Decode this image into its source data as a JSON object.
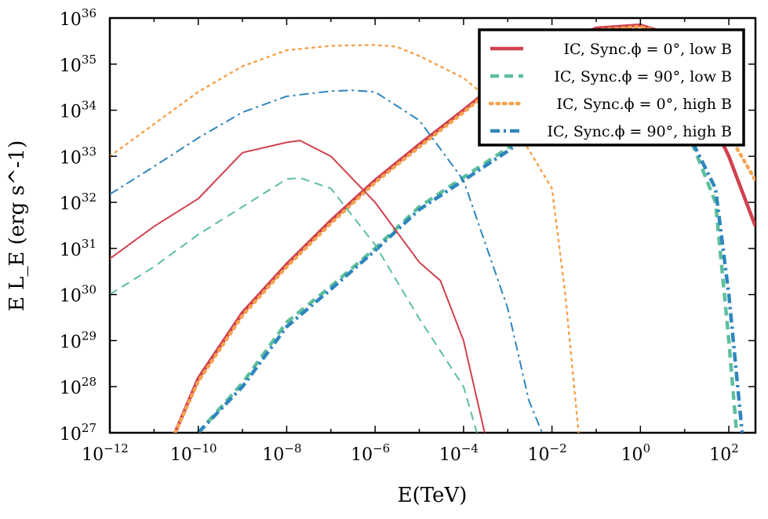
{
  "chart_data": {
    "type": "line",
    "x_scale": "log",
    "y_scale": "log",
    "xlim": [
      1e-12,
      400
    ],
    "ylim": [
      1e+27,
      1e+36
    ],
    "xlabel": "E(TeV)",
    "ylabel": "E L_E (erg s^-1)",
    "x_tick_exponents": [
      -12,
      -10,
      -8,
      -6,
      -4,
      -2,
      0,
      2
    ],
    "y_tick_exponents": [
      27,
      28,
      29,
      30,
      31,
      32,
      33,
      34,
      35,
      36
    ],
    "tick_base": "10",
    "legend_position": "top-right",
    "grid": false,
    "legend": [
      {
        "label": "IC, Sync.ϕ = 0°, low B",
        "color": "#d1404e",
        "style": "solid"
      },
      {
        "label": "IC, Sync.ϕ = 90°, low B",
        "color": "#5dbf9b",
        "style": "dashed"
      },
      {
        "label": "IC, Sync.ϕ = 0°, high B",
        "color": "#f5a34f",
        "style": "dotted"
      },
      {
        "label": "IC, Sync.ϕ = 90°, high B",
        "color": "#2f86bd",
        "style": "dashdot"
      }
    ],
    "series": [
      {
        "name": "IC, Sync.ϕ = 0°, low B",
        "component": "IC",
        "color": "#d1404e",
        "style": "solid",
        "width": 4.5,
        "x": [
          3e-11,
          1e-10,
          1e-09,
          1e-08,
          1e-07,
          1e-06,
          1e-05,
          0.0001,
          0.001,
          0.01,
          0.1,
          1,
          3,
          10,
          100,
          400
        ],
        "y": [
          1e+27,
          1.5e+28,
          4e+29,
          4.5e+30,
          4e+31,
          3e+32,
          1.8e+33,
          1e+34,
          6e+34,
          2.5e+35,
          6e+35,
          7e+35,
          5e+35,
          1e+35,
          1e+33,
          3e+31
        ]
      },
      {
        "name": "IC, Sync.ϕ = 90°, low B",
        "component": "IC",
        "color": "#5dbf9b",
        "style": "dashed",
        "width": 4.5,
        "x": [
          1e-10,
          1e-09,
          1e-08,
          1e-07,
          1e-06,
          1e-05,
          0.0001,
          0.001,
          0.01,
          0.1,
          0.5,
          1,
          10,
          50,
          100,
          150
        ],
        "y": [
          1e+27,
          1.2e+28,
          2.5e+29,
          1.5e+30,
          1e+31,
          8e+31,
          3.5e+32,
          1.5e+33,
          8e+33,
          2.5e+34,
          3e+34,
          2.8e+34,
          5e+33,
          1e+32,
          1e+29,
          1e+27
        ]
      },
      {
        "name": "IC, Sync.ϕ = 0°, high B",
        "component": "IC",
        "color": "#f5a34f",
        "style": "dotted",
        "width": 4.5,
        "x": [
          3e-11,
          1e-10,
          1e-09,
          1e-08,
          1e-07,
          1e-06,
          1e-05,
          0.0001,
          0.001,
          0.01,
          0.1,
          1,
          3,
          10,
          100,
          400
        ],
        "y": [
          1e+27,
          1.3e+28,
          3.5e+29,
          4e+30,
          3.5e+31,
          2.7e+32,
          1.6e+33,
          9e+33,
          5.5e+34,
          2.3e+35,
          5.5e+35,
          6.5e+35,
          5e+35,
          1.5e+35,
          3e+33,
          3e+32
        ]
      },
      {
        "name": "IC, Sync.ϕ = 90°, high B",
        "component": "IC",
        "color": "#2f86bd",
        "style": "dashdot",
        "width": 4.5,
        "x": [
          1e-10,
          1e-09,
          1e-08,
          1e-07,
          1e-06,
          1e-05,
          0.0001,
          0.001,
          0.01,
          0.1,
          0.5,
          1,
          10,
          50,
          100,
          200
        ],
        "y": [
          1e+27,
          1e+28,
          2e+29,
          1.3e+30,
          9e+30,
          7e+31,
          3e+32,
          1.3e+33,
          7e+33,
          2.3e+34,
          2.8e+34,
          2.6e+34,
          4.5e+33,
          2e+32,
          1e+30,
          1e+27
        ]
      },
      {
        "name": "IC, Sync.ϕ = 0°, low B",
        "component": "Sync",
        "color": "#d1404e",
        "style": "solid",
        "width": 2,
        "x": [
          1e-12,
          1e-11,
          1e-10,
          1e-09,
          1e-08,
          2e-08,
          1e-07,
          1e-06,
          1e-05,
          3e-05,
          0.0001,
          0.0003
        ],
        "y": [
          6e+30,
          3e+31,
          1.2e+32,
          1.2e+33,
          2e+33,
          2.2e+33,
          1e+33,
          1e+32,
          5e+30,
          2e+30,
          1e+29,
          1e+27
        ]
      },
      {
        "name": "IC, Sync.ϕ = 90°, low B",
        "component": "Sync",
        "color": "#5dbf9b",
        "style": "dashed",
        "width": 2,
        "x": [
          1e-12,
          1e-11,
          1e-10,
          1e-09,
          1e-08,
          2e-08,
          1e-07,
          1e-06,
          1e-05,
          0.0001,
          0.0002
        ],
        "y": [
          1e+30,
          4e+30,
          2e+31,
          8e+31,
          3.2e+32,
          3.4e+32,
          2e+32,
          1.2e+31,
          3e+29,
          1e+28,
          1e+27
        ]
      },
      {
        "name": "IC, Sync.ϕ = 0°, high B",
        "component": "Sync",
        "color": "#f5a34f",
        "style": "dotted",
        "width": 2.5,
        "x": [
          1e-12,
          1e-11,
          1e-10,
          1e-09,
          1e-08,
          1e-07,
          1e-06,
          3e-06,
          1e-05,
          0.0001,
          0.001,
          0.01,
          0.02,
          0.04
        ],
        "y": [
          1e+33,
          5e+33,
          2.5e+34,
          9e+34,
          2e+35,
          2.5e+35,
          2.6e+35,
          2.4e+35,
          1.5e+35,
          5e+34,
          8e+33,
          2e+32,
          1e+30,
          1e+27
        ]
      },
      {
        "name": "IC, Sync.ϕ = 90°, high B",
        "component": "Sync",
        "color": "#2f86bd",
        "style": "dashdot",
        "width": 2,
        "x": [
          1e-12,
          1e-11,
          1e-10,
          1e-09,
          1e-08,
          1e-07,
          3e-07,
          1e-06,
          1e-05,
          0.0001,
          0.001,
          0.003,
          0.006
        ],
        "y": [
          1.5e+32,
          6e+32,
          2.5e+33,
          9e+33,
          2e+34,
          2.6e+34,
          2.7e+34,
          2.5e+34,
          6e+33,
          3e+32,
          5e+29,
          5e+27,
          1e+27
        ]
      }
    ]
  }
}
